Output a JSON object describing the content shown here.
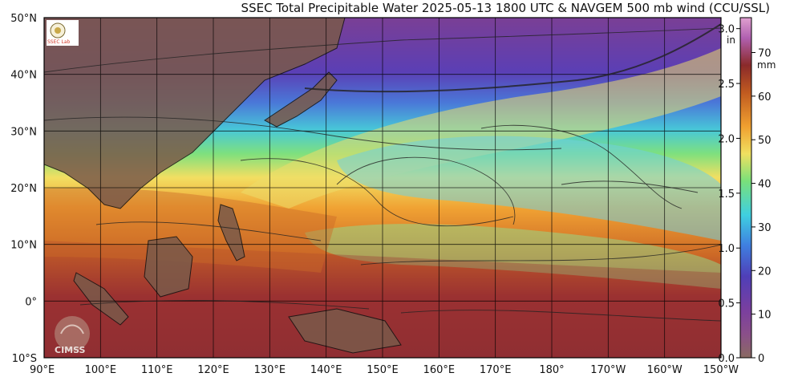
{
  "title": "SSEC Total Precipitable Water  2025-05-13 1800 UTC & NAVGEM 500 mb wind (CCU/SSL)",
  "logos": {
    "top_left": "SSEC Lab",
    "bottom_left": "CIMSS"
  },
  "map": {
    "lon_range": [
      90,
      210
    ],
    "lat_range": [
      -10,
      50
    ],
    "lat_labels": [
      "50°N",
      "40°N",
      "30°N",
      "20°N",
      "10°N",
      "0°",
      "10°S"
    ],
    "lon_labels": [
      "90°E",
      "100°E",
      "110°E",
      "120°E",
      "130°E",
      "140°E",
      "150°E",
      "160°E",
      "170°E",
      "180°",
      "170°W",
      "160°W",
      "150°W"
    ]
  },
  "colorbar": {
    "inch_unit": "in",
    "mm_unit": "mm",
    "inch_ticks": [
      "3.0",
      "2.5",
      "2.0",
      "1.5",
      "1.0",
      "0.5",
      "0.0"
    ],
    "mm_ticks": [
      "70",
      "60",
      "50",
      "40",
      "30",
      "20",
      "10",
      "0"
    ],
    "inch_values": [
      3.0,
      2.5,
      2.0,
      1.5,
      1.0,
      0.5,
      0.0
    ],
    "mm_values": [
      70,
      60,
      50,
      40,
      30,
      20,
      10,
      0
    ],
    "colors": [
      "#8a6a62",
      "#8a3f8f",
      "#5a3fb0",
      "#3f7fe0",
      "#3fd0e0",
      "#7ae07a",
      "#f0e060",
      "#f0a030",
      "#c05a20",
      "#8a2a2a",
      "#b060b0",
      "#e0a0d0"
    ]
  }
}
